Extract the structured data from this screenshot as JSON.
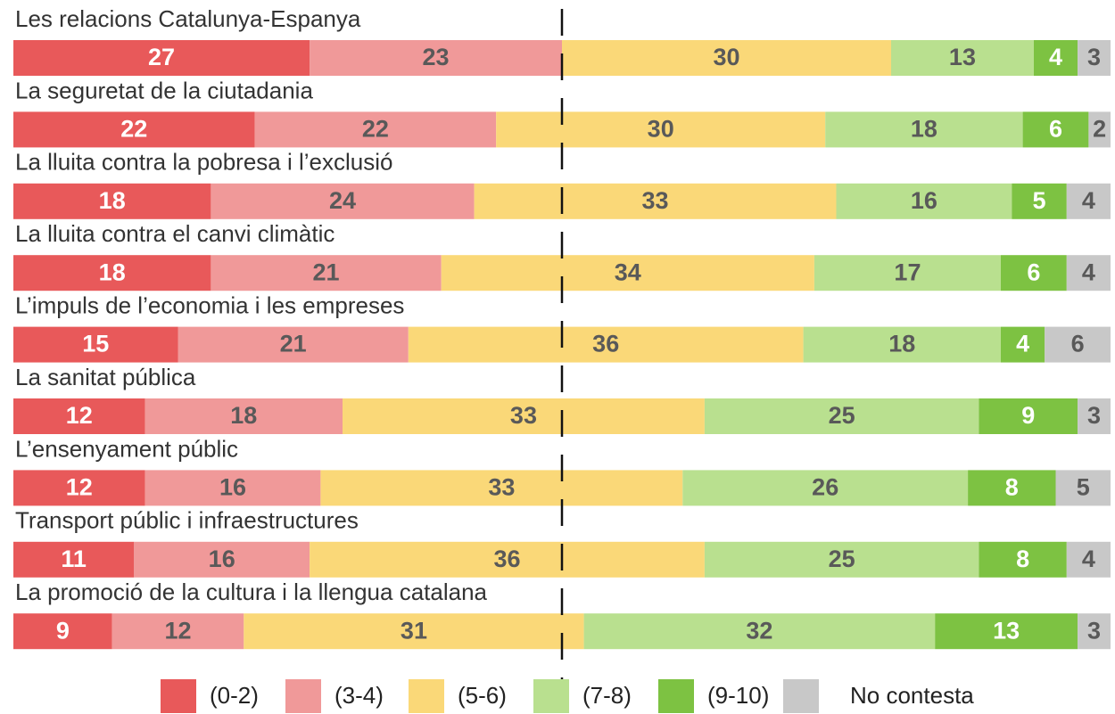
{
  "chart_data": {
    "type": "stacked_bar_horizontal",
    "categories": [
      "Les relacions Catalunya-Espanya",
      "La seguretat de la ciutadania",
      "La lluita contra la pobresa i l’exclusió",
      "La lluita contra el canvi climàtic",
      "L’impuls de l’economia i les empreses",
      "La sanitat pública",
      "L’ensenyament públic",
      "Transport públic i infraestructures",
      "La promoció de la cultura i la llengua catalana"
    ],
    "series": [
      {
        "name": "(0-2)",
        "color": "#e8595a",
        "label_color": "#ffffff",
        "values": [
          27,
          22,
          18,
          18,
          15,
          12,
          12,
          11,
          9
        ]
      },
      {
        "name": "(3-4)",
        "color": "#f09999",
        "label_color": "#595959",
        "values": [
          23,
          22,
          24,
          21,
          21,
          18,
          16,
          16,
          12
        ]
      },
      {
        "name": "(5-6)",
        "color": "#fad878",
        "label_color": "#595959",
        "values": [
          30,
          30,
          33,
          34,
          36,
          33,
          33,
          36,
          31
        ]
      },
      {
        "name": "(7-8)",
        "color": "#b9e08f",
        "label_color": "#595959",
        "values": [
          13,
          18,
          16,
          17,
          18,
          25,
          26,
          25,
          32
        ]
      },
      {
        "name": "(9-10)",
        "color": "#7dc242",
        "label_color": "#ffffff",
        "values": [
          4,
          6,
          5,
          6,
          4,
          9,
          8,
          8,
          13
        ]
      },
      {
        "name": "No contesta",
        "color": "#c8c8c8",
        "label_color": "#595959",
        "values": [
          3,
          2,
          4,
          4,
          6,
          3,
          5,
          4,
          3
        ]
      }
    ],
    "xlim": [
      0,
      100
    ],
    "legend": "bottom"
  }
}
